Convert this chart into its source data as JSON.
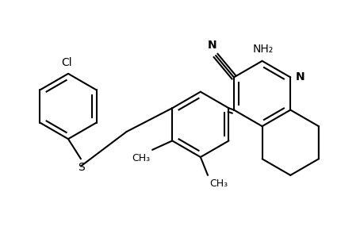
{
  "background": "#ffffff",
  "line_color": "#000000",
  "line_width": 1.5,
  "font_size": 10,
  "figsize": [
    4.6,
    3.0
  ],
  "dpi": 100,
  "xlim": [
    0,
    10
  ],
  "ylim": [
    0,
    6.5
  ]
}
